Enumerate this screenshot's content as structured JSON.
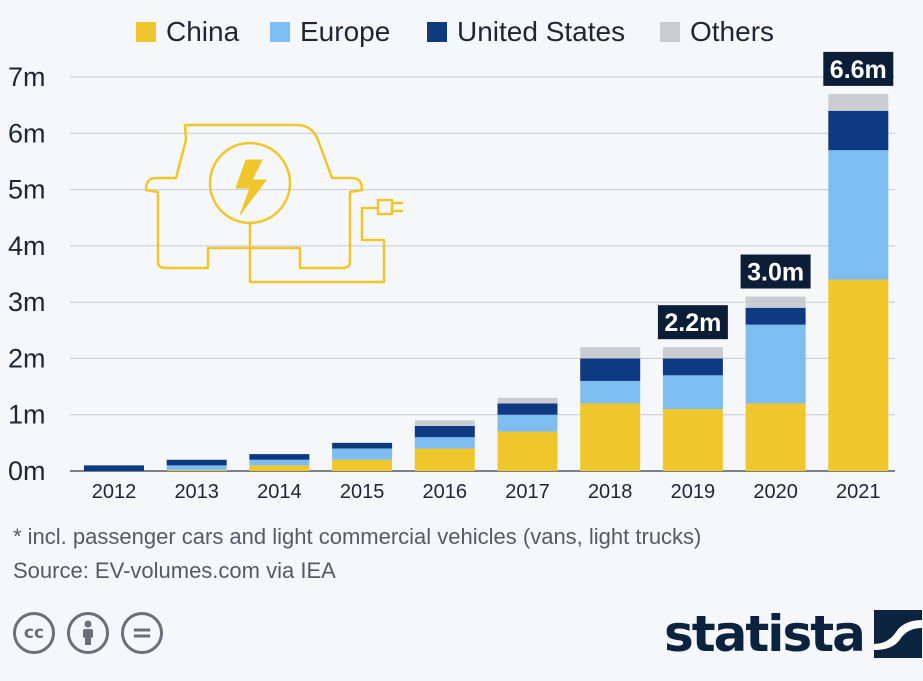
{
  "chart_data": {
    "type": "bar",
    "stacked": true,
    "categories": [
      "2012",
      "2013",
      "2014",
      "2015",
      "2016",
      "2017",
      "2018",
      "2019",
      "2020",
      "2021"
    ],
    "series": [
      {
        "name": "China",
        "color": "#f0c62d",
        "values": [
          0.0,
          0.02,
          0.1,
          0.2,
          0.4,
          0.7,
          1.2,
          1.1,
          1.2,
          3.4
        ]
      },
      {
        "name": "Europe",
        "color": "#7ebdf0",
        "values": [
          0.0,
          0.08,
          0.1,
          0.2,
          0.2,
          0.3,
          0.4,
          0.6,
          1.4,
          2.3
        ]
      },
      {
        "name": "United States",
        "color": "#0d3a80",
        "values": [
          0.1,
          0.1,
          0.1,
          0.1,
          0.2,
          0.2,
          0.4,
          0.3,
          0.3,
          0.7
        ]
      },
      {
        "name": "Others",
        "color": "#c9cdd1",
        "values": [
          0.0,
          0.0,
          0.0,
          0.0,
          0.1,
          0.1,
          0.2,
          0.2,
          0.2,
          0.3
        ]
      }
    ],
    "yticks": [
      {
        "value": 0,
        "label": "0m"
      },
      {
        "value": 1,
        "label": "1m"
      },
      {
        "value": 2,
        "label": "2m"
      },
      {
        "value": 3,
        "label": "3m"
      },
      {
        "value": 4,
        "label": "4m"
      },
      {
        "value": 5,
        "label": "5m"
      },
      {
        "value": 6,
        "label": "6m"
      },
      {
        "value": 7,
        "label": "7m"
      }
    ],
    "ylim": [
      0,
      7
    ],
    "grid": true,
    "legend": "top",
    "annotations": [
      {
        "category": "2019",
        "label": "2.2m"
      },
      {
        "category": "2020",
        "label": "3.0m"
      },
      {
        "category": "2021",
        "label": "6.6m"
      }
    ],
    "xlabel": "",
    "ylabel": ""
  },
  "footnote": "* incl. passenger cars and light commercial vehicles (vans, light trucks)",
  "source": "Source: EV-volumes.com via IEA",
  "logo": "statista",
  "badges": [
    {
      "name": "cc-icon",
      "text": "cc"
    },
    {
      "name": "attribution-icon",
      "text": ""
    },
    {
      "name": "no-derivatives-icon",
      "text": "="
    }
  ],
  "illustration_icon": "electric-car-plug-icon",
  "colors": {
    "accent": "#f0c62d",
    "brand": "#0c2340",
    "annotation_bg": "#0b1e36"
  }
}
